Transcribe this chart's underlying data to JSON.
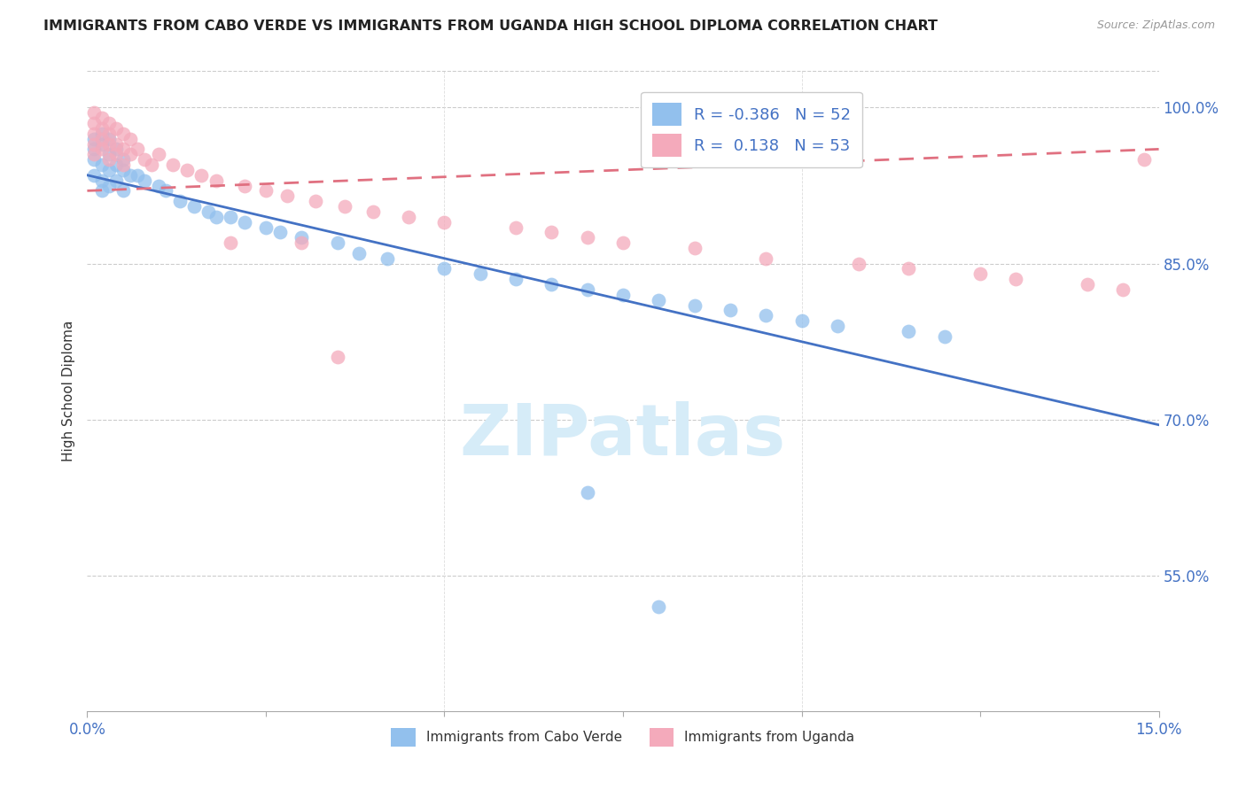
{
  "title": "IMMIGRANTS FROM CABO VERDE VS IMMIGRANTS FROM UGANDA HIGH SCHOOL DIPLOMA CORRELATION CHART",
  "source": "Source: ZipAtlas.com",
  "ylabel": "High School Diploma",
  "blue_color": "#92C0ED",
  "pink_color": "#F4AABB",
  "blue_line_color": "#4472C4",
  "pink_line_color": "#E07080",
  "watermark_text": "ZIPatlas",
  "watermark_color": "#D6ECF8",
  "legend_blue": "R = -0.386   N = 52",
  "legend_pink": "R =  0.138   N = 53",
  "legend_cabo": "Immigrants from Cabo Verde",
  "legend_uganda": "Immigrants from Uganda",
  "xmin": 0.0,
  "xmax": 0.15,
  "ymin": 0.42,
  "ymax": 1.035,
  "ytick_vals": [
    0.55,
    0.7,
    0.85,
    1.0
  ],
  "ytick_labels": [
    "55.0%",
    "70.0%",
    "85.0%",
    "100.0%"
  ],
  "xtick_vals": [
    0.0,
    0.15
  ],
  "xtick_labels": [
    "0.0%",
    "15.0%"
  ],
  "cabo_x": [
    0.001,
    0.001,
    0.001,
    0.001,
    0.002,
    0.002,
    0.002,
    0.002,
    0.002,
    0.003,
    0.003,
    0.003,
    0.003,
    0.004,
    0.004,
    0.004,
    0.005,
    0.005,
    0.005,
    0.006,
    0.007,
    0.008,
    0.01,
    0.011,
    0.013,
    0.015,
    0.017,
    0.018,
    0.02,
    0.022,
    0.025,
    0.027,
    0.03,
    0.035,
    0.038,
    0.042,
    0.05,
    0.055,
    0.06,
    0.065,
    0.07,
    0.075,
    0.08,
    0.085,
    0.09,
    0.095,
    0.1,
    0.105,
    0.115,
    0.12,
    0.07,
    0.08
  ],
  "cabo_y": [
    0.97,
    0.96,
    0.95,
    0.935,
    0.975,
    0.965,
    0.945,
    0.93,
    0.92,
    0.97,
    0.955,
    0.94,
    0.925,
    0.96,
    0.945,
    0.93,
    0.95,
    0.94,
    0.92,
    0.935,
    0.935,
    0.93,
    0.925,
    0.92,
    0.91,
    0.905,
    0.9,
    0.895,
    0.895,
    0.89,
    0.885,
    0.88,
    0.875,
    0.87,
    0.86,
    0.855,
    0.845,
    0.84,
    0.835,
    0.83,
    0.825,
    0.82,
    0.815,
    0.81,
    0.805,
    0.8,
    0.795,
    0.79,
    0.785,
    0.78,
    0.63,
    0.52
  ],
  "uganda_x": [
    0.001,
    0.001,
    0.001,
    0.001,
    0.001,
    0.002,
    0.002,
    0.002,
    0.002,
    0.003,
    0.003,
    0.003,
    0.003,
    0.004,
    0.004,
    0.004,
    0.005,
    0.005,
    0.005,
    0.006,
    0.006,
    0.007,
    0.008,
    0.009,
    0.01,
    0.012,
    0.014,
    0.016,
    0.018,
    0.022,
    0.025,
    0.028,
    0.032,
    0.036,
    0.04,
    0.045,
    0.05,
    0.06,
    0.065,
    0.07,
    0.075,
    0.085,
    0.095,
    0.108,
    0.115,
    0.125,
    0.13,
    0.14,
    0.145,
    0.148,
    0.035,
    0.02,
    0.03
  ],
  "uganda_y": [
    0.995,
    0.985,
    0.975,
    0.965,
    0.955,
    0.99,
    0.98,
    0.97,
    0.96,
    0.985,
    0.975,
    0.965,
    0.95,
    0.98,
    0.965,
    0.955,
    0.975,
    0.96,
    0.945,
    0.97,
    0.955,
    0.96,
    0.95,
    0.945,
    0.955,
    0.945,
    0.94,
    0.935,
    0.93,
    0.925,
    0.92,
    0.915,
    0.91,
    0.905,
    0.9,
    0.895,
    0.89,
    0.885,
    0.88,
    0.875,
    0.87,
    0.865,
    0.855,
    0.85,
    0.845,
    0.84,
    0.835,
    0.83,
    0.825,
    0.95,
    0.76,
    0.87,
    0.87
  ],
  "blue_line_x": [
    0.0,
    0.15
  ],
  "blue_line_y": [
    0.935,
    0.695
  ],
  "pink_line_x": [
    0.0,
    0.15
  ],
  "pink_line_y": [
    0.92,
    0.96
  ]
}
